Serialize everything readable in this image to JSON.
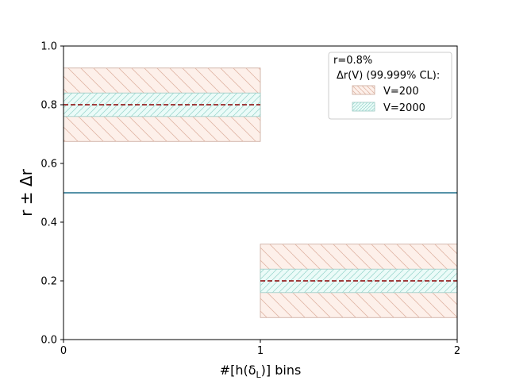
{
  "chart_data": {
    "type": "bar",
    "xlabel": "#[h(δ",
    "xlabel_sub": "L",
    "xlabel_tail": ")] bins",
    "ylabel": "r ± Δr",
    "xlim": [
      0,
      2
    ],
    "ylim": [
      0,
      1.0
    ],
    "x_ticks": [
      "0",
      "1",
      "2"
    ],
    "y_ticks": [
      "0.0",
      "0.2",
      "0.4",
      "0.6",
      "0.8",
      "1.0"
    ],
    "reference_line": {
      "y": 0.5,
      "color": "#1f6e8c"
    },
    "bins": [
      {
        "x0": 0,
        "x1": 1,
        "center": 0.8
      },
      {
        "x0": 1,
        "x1": 2,
        "center": 0.2
      }
    ],
    "series": [
      {
        "name": "V=200",
        "bands": [
          [
            0.675,
            0.925
          ],
          [
            0.075,
            0.325
          ]
        ],
        "fill": "#fdf0ea",
        "edge": "#c9a89a",
        "hatch": "#e0b6a6"
      },
      {
        "name": "V=2000",
        "bands": [
          [
            0.76,
            0.84
          ],
          [
            0.16,
            0.24
          ]
        ],
        "fill": "#ebfbf8",
        "edge": "#9cc8c2",
        "hatch": "#9fd8cf"
      }
    ],
    "center_line_color": "#8b0000",
    "legend": {
      "title_line1": "r=0.8%",
      "title_line2": "Δr(V) (99.999% CL):",
      "entries": [
        "V=200",
        "V=2000"
      ],
      "placement": "top-right"
    }
  }
}
